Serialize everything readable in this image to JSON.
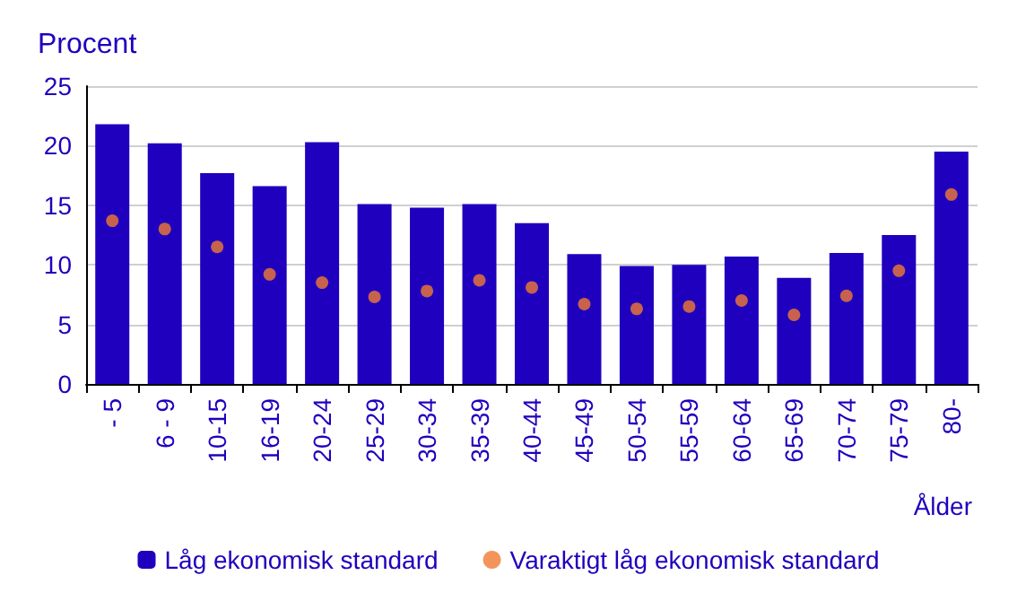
{
  "chart_data": {
    "type": "bar",
    "ylabel": "Procent",
    "xlabel": "Ålder",
    "categories": [
      "- 5",
      "6 - 9",
      "10-15",
      "16-19",
      "20-24",
      "25-29",
      "30-34",
      "35-39",
      "40-44",
      "45-49",
      "50-54",
      "55-59",
      "60-64",
      "65-69",
      "70-74",
      "75-79",
      "80-"
    ],
    "series": [
      {
        "name": "Låg ekonomisk standard",
        "color": "#1e00be",
        "values": [
          21.8,
          20.2,
          17.7,
          16.6,
          20.3,
          15.1,
          14.8,
          15.1,
          13.5,
          10.9,
          9.9,
          10.0,
          10.7,
          8.9,
          11.0,
          12.5,
          19.5
        ]
      },
      {
        "name": "Varaktigt låg ekonomisk standard",
        "type": "scatter",
        "color": "#f07a31",
        "values": [
          13.7,
          13.0,
          11.5,
          9.2,
          8.5,
          7.3,
          7.8,
          8.7,
          8.1,
          6.7,
          6.3,
          6.5,
          7.0,
          5.8,
          7.4,
          9.5,
          15.9
        ]
      }
    ],
    "ylim": [
      0,
      25
    ],
    "yticks": [
      0,
      5,
      10,
      15,
      20,
      25
    ],
    "grid": "y",
    "legend": "bottom",
    "marker": "circle"
  }
}
